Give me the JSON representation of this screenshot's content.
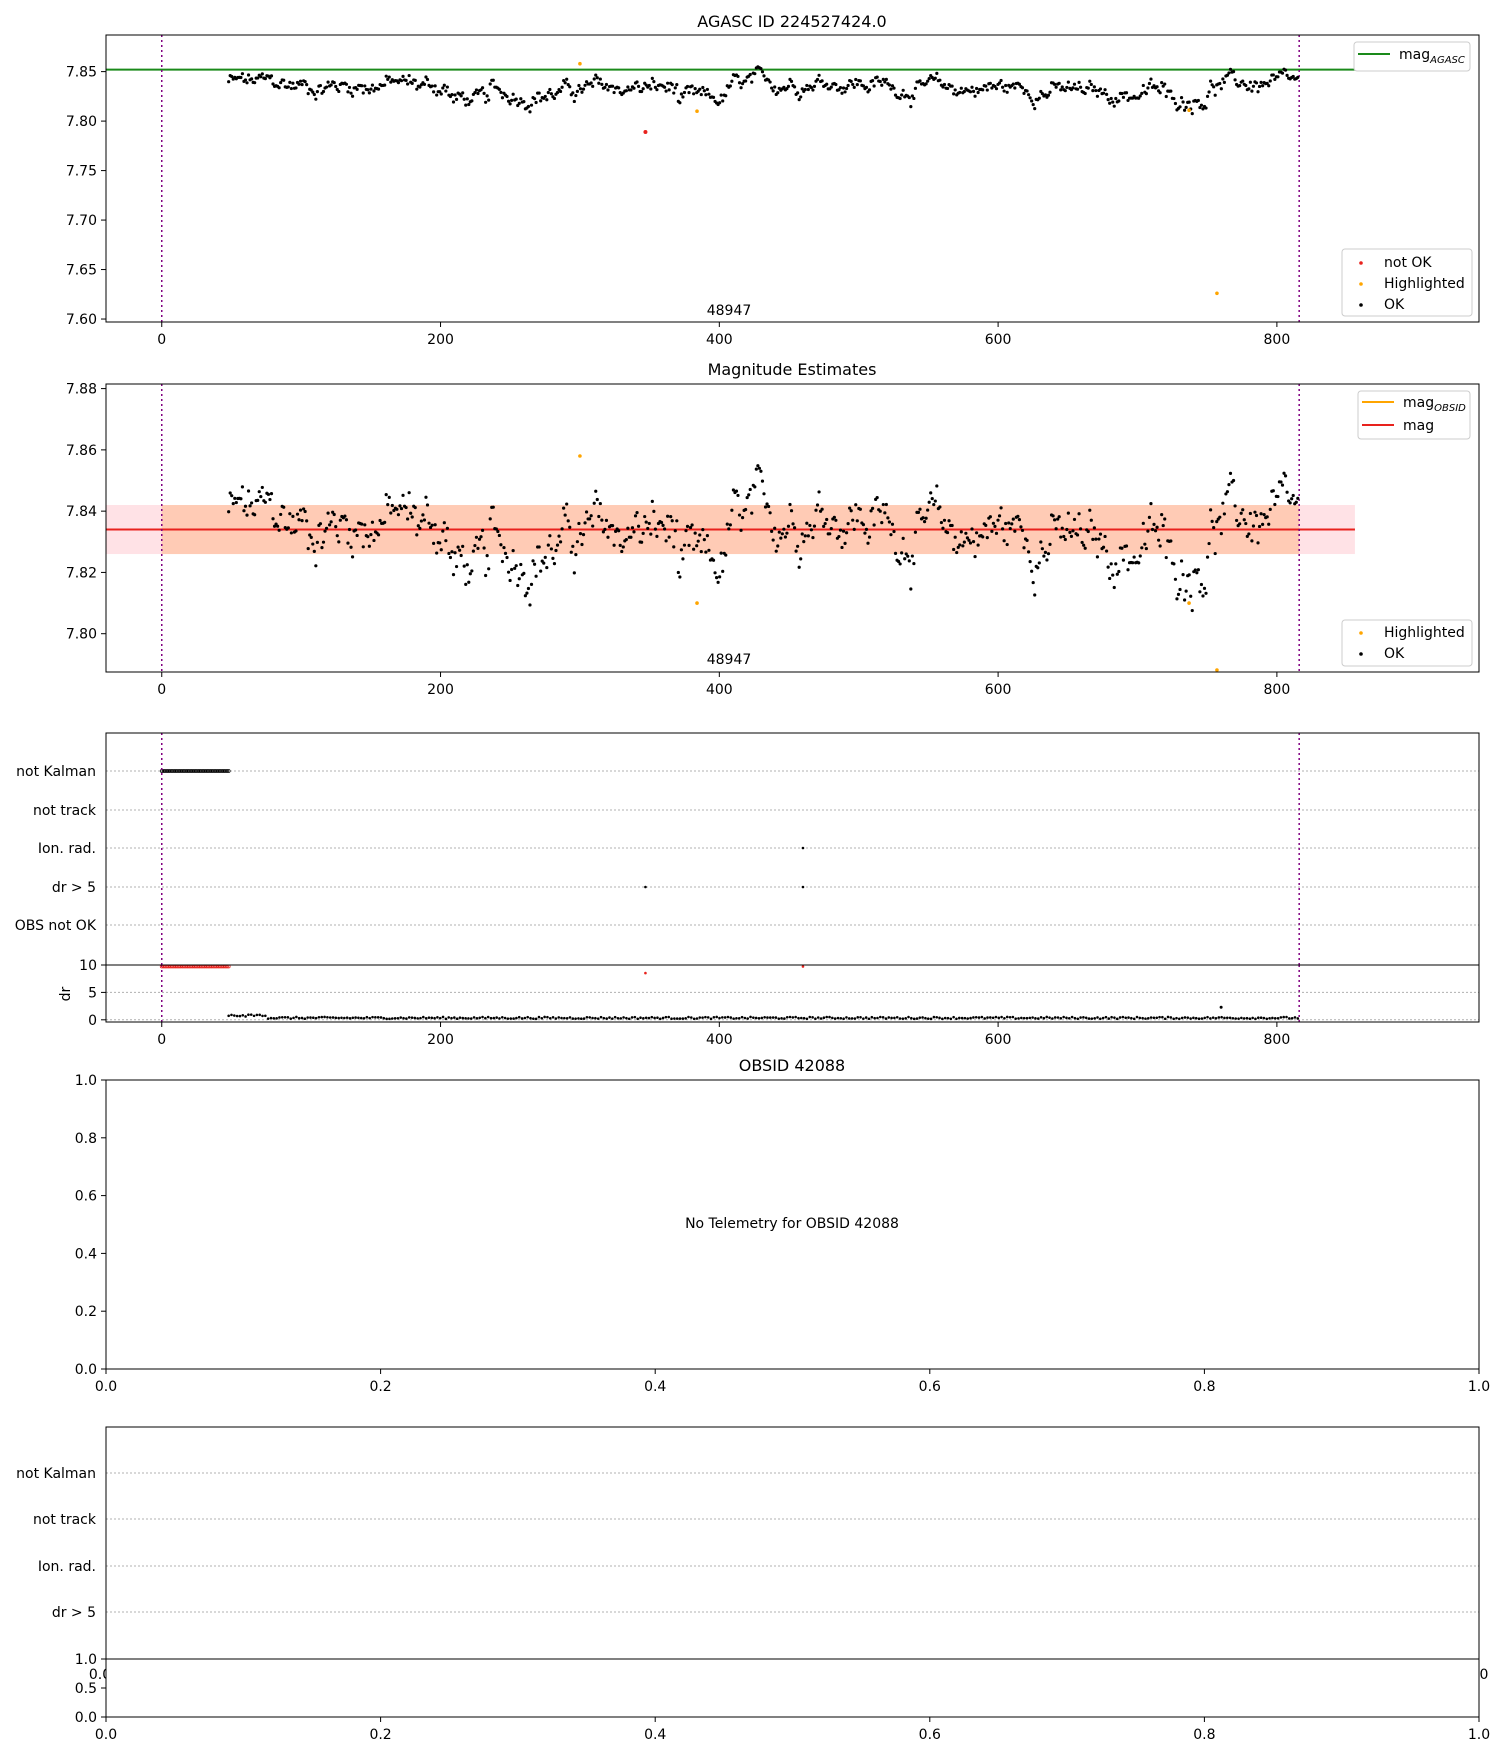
{
  "chart_data": [
    {
      "type": "scatter",
      "title": "AGASC ID 224527424.0",
      "xlim": [
        -40,
        945
      ],
      "ylim": [
        7.597,
        7.887
      ],
      "xticks": [
        "0",
        "200",
        "400",
        "600",
        "800"
      ],
      "yticks": [
        "7.60",
        "7.65",
        "7.70",
        "7.75",
        "7.80",
        "7.85"
      ],
      "obs_start": 0,
      "obs_stop": 816,
      "obs_label": "48947",
      "mag_agasc": 7.852,
      "mag_agasc_line_xmax": 856,
      "ok_points": {
        "x_start": 48,
        "x_end": 815,
        "count": 700,
        "baseline": 7.834,
        "spread": 0.009
      },
      "not_ok_points": [
        [
          347,
          7.789
        ]
      ],
      "highlighted_points": [
        [
          300,
          7.858
        ],
        [
          384,
          7.81
        ],
        [
          737,
          7.811
        ],
        [
          757,
          7.626
        ]
      ],
      "legend_top": [
        {
          "label": "mag",
          "subscript": "AGASC",
          "color": "#1a8a1a"
        }
      ],
      "legend_bottom": [
        {
          "label": "not OK",
          "color": "#e8221d"
        },
        {
          "label": "Highlighted",
          "color": "#ffa500"
        },
        {
          "label": "OK",
          "color": "#000000"
        }
      ]
    },
    {
      "type": "scatter",
      "title": "Magnitude Estimates",
      "xlim": [
        -40,
        945
      ],
      "ylim": [
        7.7875,
        7.8815
      ],
      "xticks": [
        "0",
        "200",
        "400",
        "600",
        "800"
      ],
      "yticks": [
        "7.80",
        "7.82",
        "7.84",
        "7.86",
        "7.88"
      ],
      "obs_start": 0,
      "obs_stop": 816,
      "obs_label": "48947",
      "mag": 7.834,
      "mag_band": [
        7.826,
        7.842
      ],
      "mag_line_xmax": 856,
      "mag_obsid": 7.834,
      "obsid_band": [
        7.826,
        7.842
      ],
      "ok_points": {
        "x_start": 48,
        "x_end": 815,
        "count": 700,
        "baseline": 7.834,
        "spread": 0.009
      },
      "highlighted_points": [
        [
          300,
          7.858
        ],
        [
          384,
          7.81
        ],
        [
          737,
          7.81
        ],
        [
          757,
          7.788
        ]
      ],
      "legend_top": [
        {
          "label": "mag",
          "subscript": "OBSID",
          "color": "#ffa500"
        },
        {
          "label": "mag",
          "subscript": "",
          "color": "#e8221d"
        }
      ],
      "legend_bottom": [
        {
          "label": "Highlighted",
          "color": "#ffa500"
        },
        {
          "label": "OK",
          "color": "#000000"
        }
      ]
    },
    {
      "type": "scatter",
      "flags": [
        "not Kalman",
        "not track",
        "Ion. rad.",
        "dr > 5",
        "OBS not OK"
      ],
      "flag_points": {
        "not Kalman": {
          "x_start": 0,
          "x_end": 48,
          "count": 40
        },
        "Ion. rad.": [
          [
            460
          ]
        ],
        "dr > 5": [
          [
            347
          ],
          [
            460
          ]
        ]
      },
      "dr": {
        "ylabel": "dr",
        "yticks": [
          "0",
          "5",
          "10"
        ],
        "ylim": [
          -0.4,
          10
        ],
        "red_points": {
          "x_start": 0,
          "x_end": 48,
          "count": 40,
          "value": 10
        },
        "red_extra": [
          [
            347,
            8.8
          ],
          [
            460,
            10
          ]
        ],
        "ok_points": {
          "x_start": 48,
          "x_end": 815,
          "count": 380,
          "baseline": 0.35
        },
        "spike": [
          [
            760,
            2.3
          ]
        ]
      },
      "xticks": [
        "0",
        "200",
        "400",
        "600",
        "800"
      ]
    },
    {
      "type": "scatter",
      "title": "OBSID 42088",
      "message": "No Telemetry for OBSID 42088",
      "xlim": [
        0,
        1
      ],
      "ylim": [
        0,
        1
      ],
      "xticks": [
        "0.0",
        "0.2",
        "0.4",
        "0.6",
        "0.8",
        "1.0"
      ],
      "yticks": [
        "0.0",
        "0.2",
        "0.4",
        "0.6",
        "0.8",
        "1.0"
      ]
    },
    {
      "type": "scatter",
      "flags": [
        "not Kalman",
        "not track",
        "Ion. rad.",
        "dr > 5"
      ],
      "small_yticks": [
        "0.0",
        "0.5",
        "1.0"
      ],
      "xticks": [
        "0.0",
        "0.2",
        "0.4",
        "0.6",
        "0.8",
        "1.0"
      ],
      "clipped_left": "0.0",
      "clipped_right": "0"
    }
  ]
}
